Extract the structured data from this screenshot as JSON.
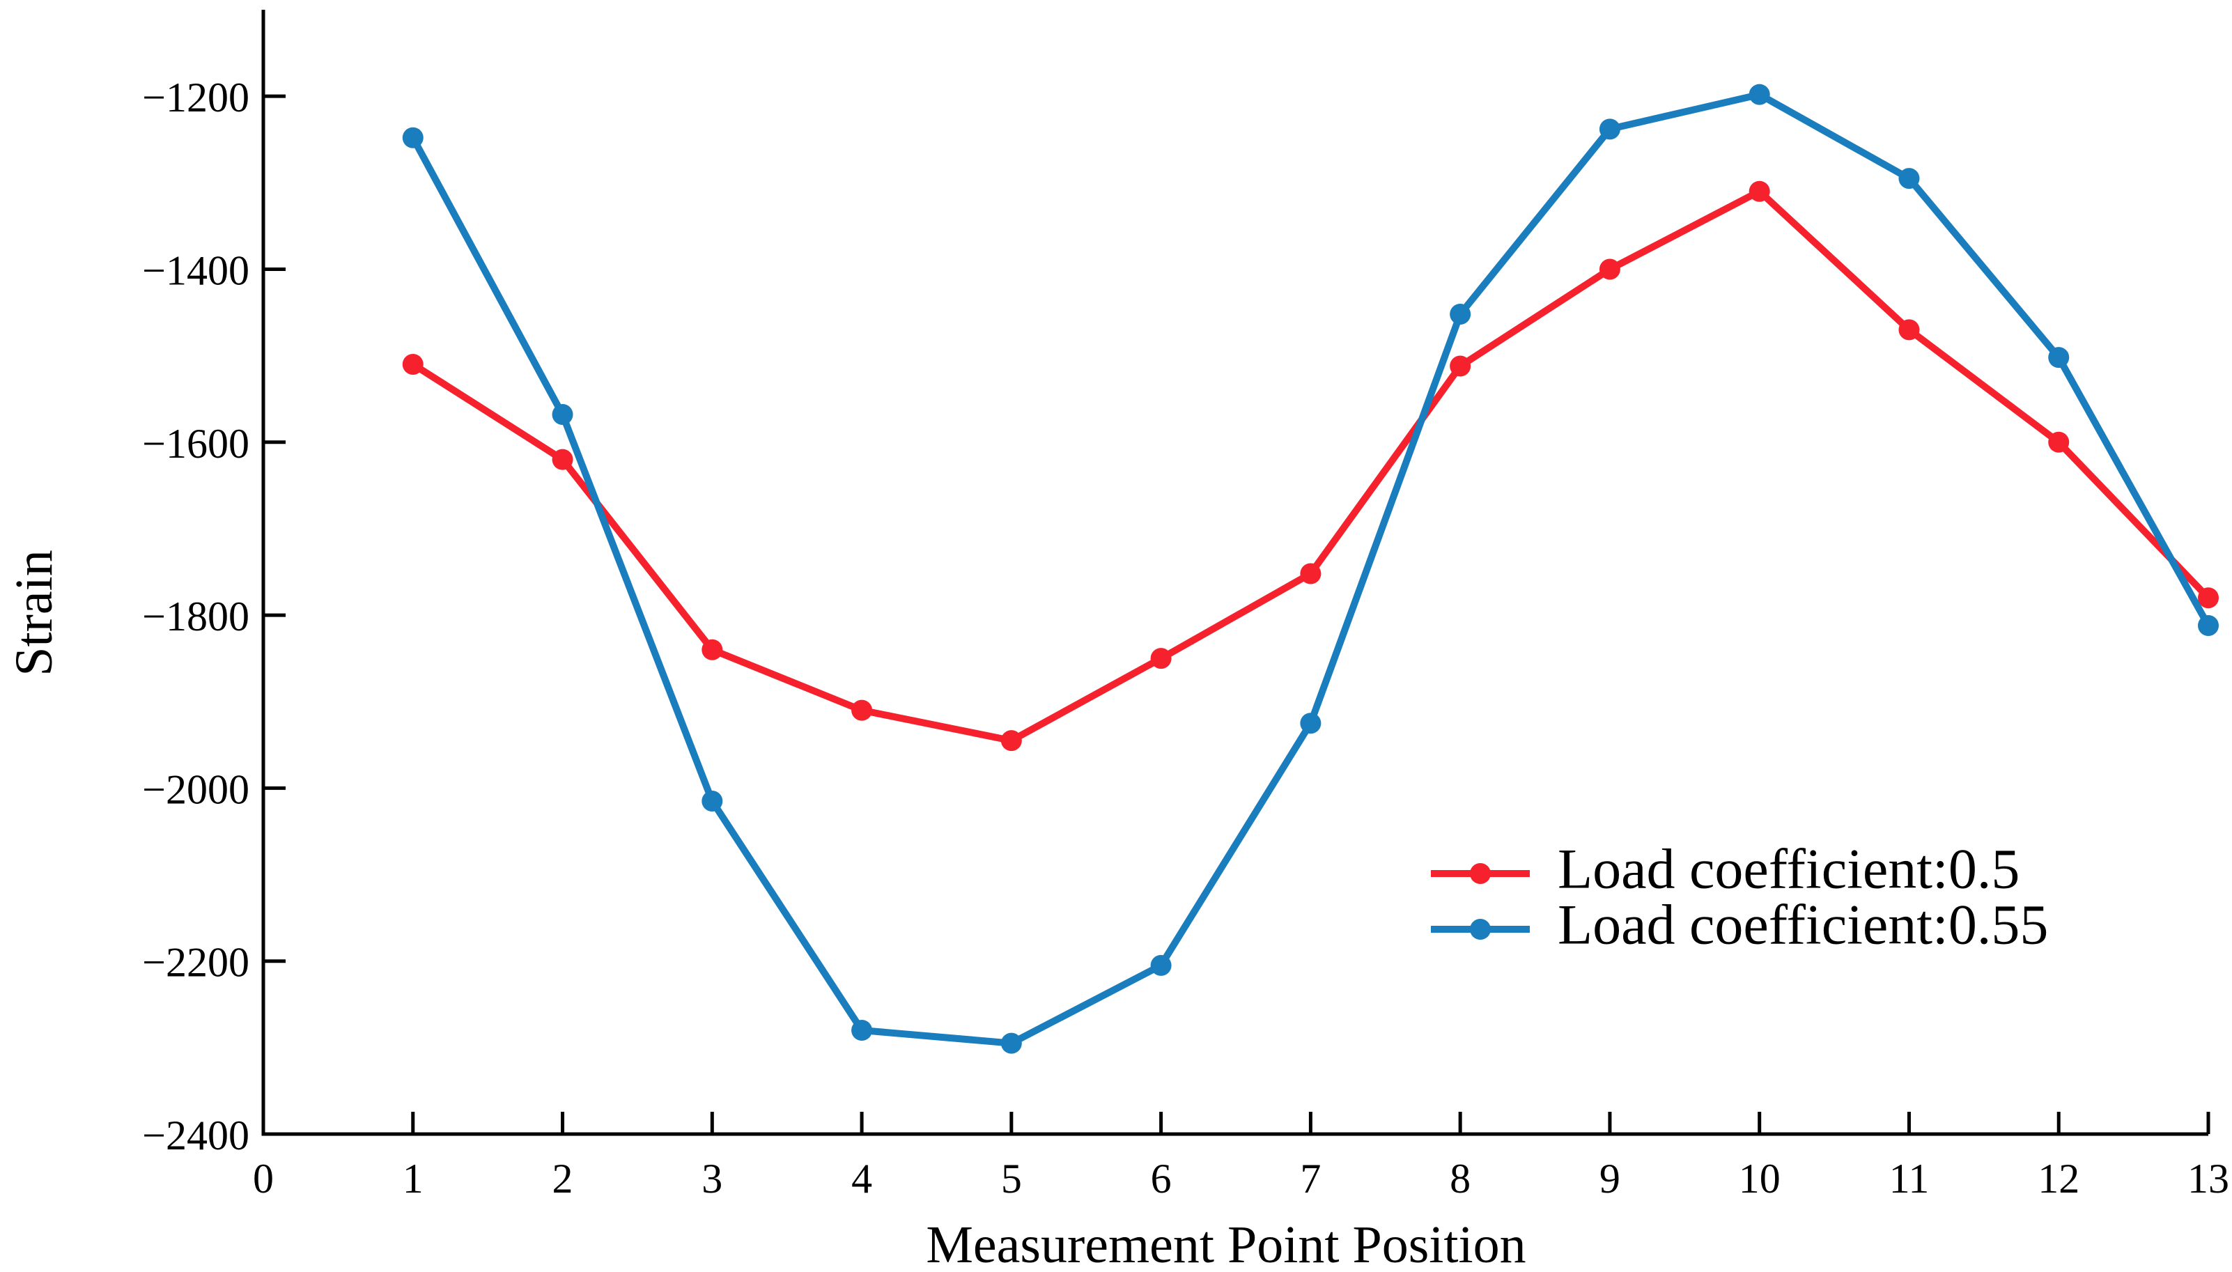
{
  "chart_data": {
    "type": "line",
    "title": "",
    "xlabel": "Measurement Point Position",
    "ylabel": "Strain",
    "xlim": [
      0,
      13
    ],
    "ylim": [
      -2400,
      -1100
    ],
    "x_ticks": [
      0,
      1,
      2,
      3,
      4,
      5,
      6,
      7,
      8,
      9,
      10,
      11,
      12,
      13
    ],
    "x_tick_labels": [
      "0",
      "1",
      "2",
      "3",
      "4",
      "5",
      "6",
      "7",
      "8",
      "9",
      "10",
      "11",
      "12",
      "13"
    ],
    "y_ticks": [
      -2400,
      -2200,
      -2000,
      -1800,
      -1600,
      -1400,
      -1200
    ],
    "y_tick_labels": [
      "−2400",
      "−2200",
      "−2000",
      "−1800",
      "−1600",
      "−1400",
      "−1200"
    ],
    "grid": false,
    "legend_position": "lower-right",
    "x": [
      1,
      2,
      3,
      4,
      5,
      6,
      7,
      8,
      9,
      10,
      11,
      12,
      13
    ],
    "series": [
      {
        "name": "Load coefficient:0.5",
        "color": "#f5222d",
        "values": [
          -1510,
          -1620,
          -1840,
          -1910,
          -1945,
          -1850,
          -1752,
          -1512,
          -1400,
          -1310,
          -1470,
          -1600,
          -1780
        ]
      },
      {
        "name": "Load coefficient:0.55",
        "color": "#1a7dbd",
        "values": [
          -1248,
          -1568,
          -2015,
          -2280,
          -2295,
          -2205,
          -1925,
          -1452,
          -1238,
          -1198,
          -1295,
          -1502,
          -1812
        ]
      }
    ]
  }
}
